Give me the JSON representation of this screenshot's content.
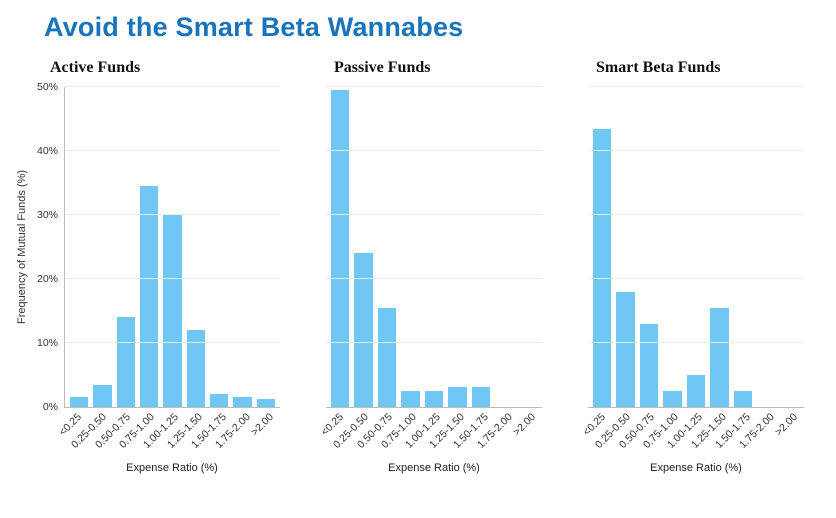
{
  "page_title": "Avoid the Smart Beta Wannabes",
  "colors": {
    "title": "#1a74bc",
    "bar": "#70c7f4",
    "axis": "#bcbcbc",
    "grid": "#eaeaea"
  },
  "chart_data": [
    {
      "type": "bar",
      "title": "Active Funds",
      "categories": [
        "<0.25",
        "0.25-0.50",
        "0.50-0.75",
        "0.75-1.00",
        "1.00-1.25",
        "1.25-1.50",
        "1.50-1.75",
        "1.75-2.00",
        ">2.00"
      ],
      "values": [
        1.5,
        3.5,
        14,
        34.5,
        30,
        12,
        2,
        1.5,
        1.2
      ],
      "xlabel": "Expense Ratio (%)",
      "ylabel": "Frequency of Mutual Funds (%)",
      "ylim": [
        0,
        50
      ],
      "yticks": [
        "0%",
        "10%",
        "20%",
        "30%",
        "40%",
        "50%"
      ],
      "grid": true,
      "legend": false
    },
    {
      "type": "bar",
      "title": "Passive Funds",
      "categories": [
        "<0.25",
        "0.25-0.50",
        "0.50-0.75",
        "0.75-1.00",
        "1.00-1.25",
        "1.25-1.50",
        "1.50-1.75",
        "1.75-2.00",
        ">2.00"
      ],
      "values": [
        49.5,
        24,
        15.5,
        2.5,
        2.5,
        3.2,
        3.2,
        0,
        0
      ],
      "xlabel": "Expense Ratio (%)",
      "ylabel": "",
      "ylim": [
        0,
        50
      ],
      "yticks": [],
      "grid": true,
      "legend": false
    },
    {
      "type": "bar",
      "title": "Smart Beta  Funds",
      "categories": [
        "<0.25",
        "0.25-0.50",
        "0.50-0.75",
        "0.75-1.00",
        "1.00-1.25",
        "1.25-1.50",
        "1.50-1.75",
        "1.75-2.00",
        ">2.00"
      ],
      "values": [
        43.5,
        18,
        13,
        2.5,
        5,
        15.5,
        2.5,
        0,
        0
      ],
      "xlabel": "Expense Ratio (%)",
      "ylabel": "",
      "ylim": [
        0,
        50
      ],
      "yticks": [],
      "grid": true,
      "legend": false
    }
  ]
}
